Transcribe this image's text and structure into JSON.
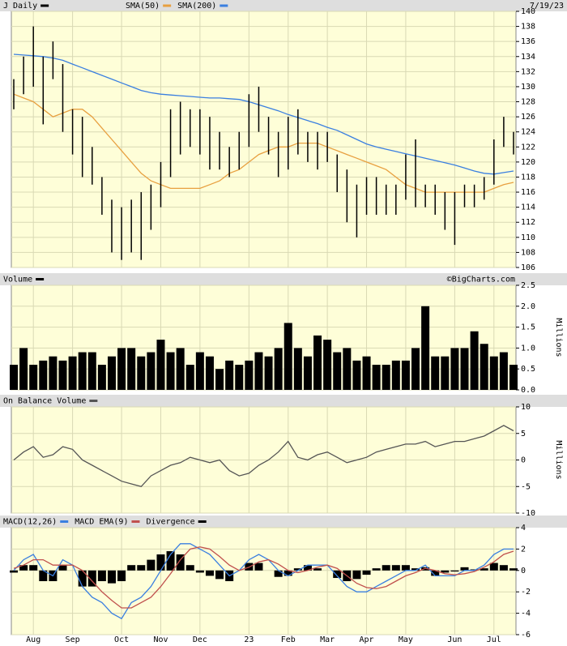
{
  "chart_data": [
    {
      "type": "ohlc",
      "title": "J Daily",
      "date_label": "7/19/23",
      "color": "#000000",
      "high": [
        131,
        134,
        138,
        134,
        136,
        133,
        127,
        126,
        122,
        118,
        115,
        114,
        115,
        116,
        117,
        120,
        127,
        128,
        127,
        127,
        126,
        124,
        122,
        124,
        129,
        130,
        126,
        124,
        126,
        127,
        124,
        124,
        124,
        121,
        119,
        117,
        118,
        118,
        117,
        117,
        121,
        123,
        117,
        117,
        116,
        116,
        117,
        117,
        118,
        123,
        126,
        124
      ],
      "low": [
        127,
        129,
        130,
        125,
        131,
        124,
        121,
        118,
        117,
        113,
        108,
        107,
        108,
        107,
        111,
        114,
        118,
        121,
        122,
        121,
        119,
        119,
        118,
        119,
        122,
        124,
        121,
        118,
        119,
        121,
        120,
        119,
        120,
        116,
        112,
        110,
        113,
        113,
        113,
        113,
        115,
        114,
        114,
        113,
        111,
        109,
        114,
        114,
        115,
        117,
        122,
        121
      ],
      "series": [
        {
          "name": "SMA(50)",
          "color": "#e8a040",
          "values": [
            129,
            128.5,
            128,
            127,
            126,
            126.5,
            127,
            127,
            126,
            124.5,
            123,
            121.5,
            120,
            118.5,
            117.5,
            117,
            116.5,
            116.5,
            116.5,
            116.5,
            117,
            117.5,
            118.5,
            119,
            120,
            121,
            121.5,
            122,
            122,
            122.5,
            122.5,
            122.5,
            122,
            121.5,
            121,
            120.5,
            120,
            119.5,
            119,
            118,
            117,
            116.5,
            116,
            116,
            116,
            116,
            116,
            116,
            116,
            116.5,
            117,
            117.3
          ]
        },
        {
          "name": "SMA(200)",
          "color": "#3a7fe0",
          "values": [
            134.3,
            134.2,
            134.1,
            134,
            133.8,
            133.5,
            133,
            132.5,
            132,
            131.5,
            131,
            130.5,
            130,
            129.5,
            129.2,
            129,
            128.9,
            128.8,
            128.7,
            128.6,
            128.5,
            128.5,
            128.4,
            128.3,
            128,
            127.6,
            127.2,
            126.8,
            126.3,
            125.9,
            125.5,
            125.1,
            124.6,
            124.2,
            123.6,
            123,
            122.4,
            122,
            121.7,
            121.4,
            121.1,
            120.8,
            120.5,
            120.2,
            119.9,
            119.6,
            119.2,
            118.8,
            118.5,
            118.4,
            118.6,
            118.8
          ]
        }
      ],
      "ylim": [
        106,
        140
      ],
      "yticks": [
        106,
        108,
        110,
        112,
        114,
        116,
        118,
        120,
        122,
        124,
        126,
        128,
        130,
        132,
        134,
        136,
        138,
        140
      ],
      "grid": true
    },
    {
      "type": "bar",
      "title": "Volume",
      "source": "©BigCharts.com",
      "y_label": "Millions",
      "color": "#000000",
      "values": [
        0.6,
        1.0,
        0.6,
        0.7,
        0.8,
        0.7,
        0.8,
        0.9,
        0.9,
        0.6,
        0.8,
        1.0,
        1.0,
        0.8,
        0.9,
        1.2,
        0.9,
        1.0,
        0.6,
        0.9,
        0.8,
        0.5,
        0.7,
        0.6,
        0.7,
        0.9,
        0.8,
        1.0,
        1.6,
        1.0,
        0.8,
        1.3,
        1.2,
        0.9,
        1.0,
        0.7,
        0.8,
        0.6,
        0.6,
        0.7,
        0.7,
        1.0,
        2.0,
        0.8,
        0.8,
        1.0,
        1.0,
        1.4,
        1.1,
        0.8,
        0.9,
        0.6
      ],
      "ylim": [
        0,
        2.5
      ],
      "yticks": [
        {
          "value": 0,
          "label": "0.0"
        },
        0.5,
        {
          "value": 1,
          "label": "1.0"
        },
        1.5,
        {
          "value": 2,
          "label": "2.0"
        },
        2.5
      ],
      "grid": true
    },
    {
      "type": "line",
      "title": "On Balance Volume",
      "y_label": "Millions",
      "color": "#555555",
      "values": [
        0,
        1.5,
        2.5,
        0.5,
        1,
        2.5,
        2,
        0,
        -1,
        -2,
        -3,
        -4,
        -4.5,
        -5,
        -3,
        -2,
        -1,
        -0.5,
        0.5,
        0,
        -0.5,
        0,
        -2,
        -3,
        -2.5,
        -1,
        0,
        1.5,
        3.5,
        0.5,
        0,
        1,
        1.5,
        0.5,
        -0.5,
        0,
        0.5,
        1.5,
        2,
        2.5,
        3,
        3,
        3.5,
        2.5,
        3,
        3.5,
        3.5,
        4,
        4.5,
        5.5,
        6.5,
        5.5
      ],
      "ylim": [
        -10,
        10
      ],
      "yticks": [
        -10,
        -5,
        0,
        5,
        10
      ],
      "grid": true
    },
    {
      "type": "macd",
      "categories": [
        null,
        null,
        "Aug",
        null,
        null,
        null,
        "Sep",
        null,
        null,
        null,
        null,
        "Oct",
        null,
        null,
        null,
        "Nov",
        null,
        null,
        null,
        "Dec",
        null,
        null,
        null,
        null,
        "23",
        null,
        null,
        null,
        "Feb",
        null,
        null,
        null,
        "Mar",
        null,
        null,
        null,
        "Apr",
        null,
        null,
        null,
        "May",
        null,
        null,
        null,
        null,
        "Jun",
        null,
        null,
        null,
        "Jul",
        null,
        null
      ],
      "series": [
        {
          "name": "MACD(12,26)",
          "color": "#3a7fe0",
          "style": "line",
          "values": [
            0,
            1,
            1.5,
            0,
            -0.5,
            1,
            0.5,
            -1.5,
            -2.5,
            -3,
            -4,
            -4.5,
            -3,
            -2.5,
            -1.5,
            0,
            1.5,
            2.5,
            2.5,
            2,
            1.5,
            0.5,
            -0.5,
            0,
            1,
            1.5,
            1,
            0,
            -0.5,
            0,
            0.5,
            0.5,
            0.5,
            -0.5,
            -1.5,
            -2,
            -2,
            -1.5,
            -1,
            -0.5,
            0,
            0,
            0.5,
            -0.5,
            -0.5,
            -0.5,
            0,
            0,
            0.5,
            1.5,
            2,
            2
          ]
        },
        {
          "name": "MACD EMA(9)",
          "color": "#c0504d",
          "style": "line",
          "values": [
            0.2,
            0.5,
            1,
            1,
            0.5,
            0.5,
            0.5,
            0,
            -1,
            -2,
            -2.8,
            -3.5,
            -3.5,
            -3,
            -2.5,
            -1.5,
            -0.3,
            1,
            2,
            2.2,
            2,
            1.3,
            0.5,
            0,
            0.3,
            0.8,
            1,
            0.6,
            0,
            -0.2,
            0,
            0.3,
            0.5,
            0.2,
            -0.5,
            -1.2,
            -1.6,
            -1.7,
            -1.5,
            -1,
            -0.5,
            -0.2,
            0.2,
            0,
            -0.3,
            -0.4,
            -0.3,
            -0.1,
            0.3,
            0.8,
            1.5,
            1.8
          ]
        },
        {
          "name": "Divergence",
          "color": "#000000",
          "style": "bar",
          "values": [
            -0.2,
            0.5,
            0.5,
            -1,
            -1,
            0.5,
            0,
            -1.5,
            -1.5,
            -1,
            -1.2,
            -1,
            0.5,
            0.5,
            1,
            1.5,
            1.8,
            1.5,
            0.5,
            -0.2,
            -0.5,
            -0.8,
            -1,
            0,
            0.7,
            0.7,
            0,
            -0.6,
            -0.5,
            0.2,
            0.5,
            0.2,
            0,
            -0.7,
            -1,
            -0.8,
            -0.4,
            0.2,
            0.5,
            0.5,
            0.5,
            0.2,
            0.3,
            -0.5,
            -0.2,
            -0.1,
            0.3,
            0.1,
            0.2,
            0.7,
            0.5,
            0.2
          ]
        }
      ],
      "ylim": [
        -6,
        4
      ],
      "yticks": [
        -6,
        -4,
        -2,
        0,
        2,
        4
      ],
      "grid": true
    }
  ]
}
